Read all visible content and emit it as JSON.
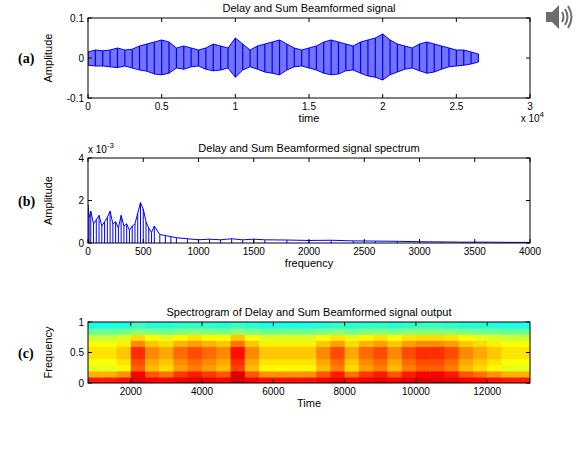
{
  "chart_data": [
    {
      "type": "area",
      "panel_label": "(a)",
      "title": "Delay and Sum Beamformed signal",
      "xlabel": "time",
      "ylabel": "Amplitude",
      "x_exponent": {
        "base": "x 10",
        "power": "4"
      },
      "x": [
        0,
        0.05,
        0.1,
        0.15,
        0.2,
        0.25,
        0.3,
        0.35,
        0.4,
        0.45,
        0.5,
        0.55,
        0.6,
        0.65,
        0.7,
        0.75,
        0.8,
        0.85,
        0.9,
        0.95,
        1,
        1.05,
        1.1,
        1.15,
        1.2,
        1.25,
        1.3,
        1.35,
        1.4,
        1.45,
        1.5,
        1.55,
        1.6,
        1.65,
        1.7,
        1.75,
        1.8,
        1.85,
        1.9,
        1.95,
        2,
        2.05,
        2.1,
        2.15,
        2.2,
        2.25,
        2.3,
        2.35,
        2.4,
        2.45,
        2.5,
        2.55,
        2.6,
        2.65
      ],
      "series": [
        {
          "color": "#0000ff",
          "values": [
            0.015,
            0.02,
            0.018,
            0.02,
            0.025,
            0.02,
            0.022,
            0.03,
            0.035,
            0.04,
            0.045,
            0.04,
            0.025,
            0.03,
            0.025,
            0.02,
            0.025,
            0.035,
            0.03,
            0.025,
            0.05,
            0.035,
            0.02,
            0.03,
            0.035,
            0.04,
            0.045,
            0.035,
            0.025,
            0.02,
            0.025,
            0.03,
            0.04,
            0.045,
            0.04,
            0.035,
            0.03,
            0.04,
            0.045,
            0.05,
            0.06,
            0.045,
            0.035,
            0.03,
            0.025,
            0.035,
            0.04,
            0.035,
            0.03,
            0.025,
            0.02,
            0.02,
            0.015,
            0.01
          ]
        },
        {
          "color": "#0000ff",
          "values": [
            -0.018,
            -0.02,
            -0.02,
            -0.022,
            -0.024,
            -0.02,
            -0.025,
            -0.03,
            -0.033,
            -0.04,
            -0.042,
            -0.038,
            -0.025,
            -0.028,
            -0.022,
            -0.02,
            -0.028,
            -0.032,
            -0.03,
            -0.025,
            -0.048,
            -0.03,
            -0.022,
            -0.028,
            -0.035,
            -0.038,
            -0.042,
            -0.03,
            -0.022,
            -0.02,
            -0.025,
            -0.03,
            -0.038,
            -0.042,
            -0.04,
            -0.032,
            -0.03,
            -0.038,
            -0.045,
            -0.048,
            -0.055,
            -0.042,
            -0.035,
            -0.028,
            -0.025,
            -0.032,
            -0.038,
            -0.035,
            -0.028,
            -0.022,
            -0.02,
            -0.018,
            -0.015,
            -0.01
          ]
        }
      ],
      "xlim": [
        0,
        3
      ],
      "xticks": [
        0,
        0.5,
        1,
        1.5,
        2,
        2.5,
        3
      ],
      "ylim": [
        -0.1,
        0.1
      ],
      "yticks": [
        -0.1,
        0,
        0.1
      ],
      "grid": false
    },
    {
      "type": "line",
      "panel_label": "(b)",
      "title": "Delay and Sum Beamformed signal spectrum",
      "xlabel": "frequency",
      "ylabel": "Amplitude",
      "y_exponent": {
        "base": "x 10",
        "power": "-3"
      },
      "x": [
        0,
        10,
        25,
        50,
        75,
        100,
        125,
        150,
        175,
        200,
        225,
        250,
        275,
        300,
        325,
        350,
        375,
        400,
        425,
        450,
        475,
        500,
        525,
        550,
        575,
        600,
        650,
        700,
        750,
        800,
        900,
        1000,
        1100,
        1200,
        1300,
        1400,
        1500,
        1600,
        1800,
        2000,
        2200,
        2400,
        2600,
        2800,
        3000,
        3200,
        3400,
        3600,
        3800,
        4000
      ],
      "values": [
        1.8,
        1.2,
        1.5,
        0.9,
        1.1,
        1.3,
        0.8,
        1.0,
        1.2,
        1.5,
        0.9,
        1.0,
        0.7,
        1.3,
        0.8,
        0.9,
        0.6,
        0.8,
        0.9,
        1.4,
        1.9,
        1.6,
        1.0,
        0.7,
        0.5,
        0.8,
        0.4,
        0.35,
        0.3,
        0.25,
        0.2,
        0.15,
        0.18,
        0.15,
        0.2,
        0.15,
        0.18,
        0.15,
        0.14,
        0.12,
        0.13,
        0.1,
        0.09,
        0.08,
        0.06,
        0.05,
        0.04,
        0.04,
        0.03,
        0.03
      ],
      "color": "#0000ff",
      "xlim": [
        0,
        4000
      ],
      "xticks": [
        0,
        500,
        1000,
        1500,
        2000,
        2500,
        3000,
        3500,
        4000
      ],
      "ylim": [
        0,
        4
      ],
      "yticks": [
        0,
        2,
        4
      ],
      "grid": false
    },
    {
      "type": "heatmap",
      "panel_label": "(c)",
      "title": "Spectrogram of Delay and Sum Beamformed signal output",
      "xlabel": "Time",
      "ylabel": "Frequency",
      "x_bins": [
        800,
        1200,
        1600,
        2000,
        2400,
        2800,
        3200,
        3600,
        4000,
        4400,
        4800,
        5200,
        5600,
        6000,
        6400,
        6800,
        7200,
        7600,
        8000,
        8400,
        8800,
        9200,
        9600,
        10000,
        10400,
        10800,
        11200,
        11600,
        12000,
        12400,
        12800,
        13200
      ],
      "y_bins": [
        0,
        0.1,
        0.2,
        0.3,
        0.4,
        0.5,
        0.6,
        0.7,
        0.8,
        0.9,
        1
      ],
      "z": [
        [
          0.85,
          0.85,
          0.86,
          0.91,
          0.88,
          0.87,
          0.89,
          0.9,
          0.89,
          0.88,
          0.92,
          0.88,
          0.86,
          0.86,
          0.86,
          0.86,
          0.88,
          0.9,
          0.87,
          0.89,
          0.9,
          0.88,
          0.9,
          0.91,
          0.91,
          0.9,
          0.88,
          0.87,
          0.86,
          0.85,
          0.85
        ],
        [
          0.7,
          0.7,
          0.73,
          0.88,
          0.79,
          0.76,
          0.82,
          0.85,
          0.82,
          0.79,
          0.91,
          0.79,
          0.73,
          0.73,
          0.73,
          0.73,
          0.79,
          0.85,
          0.76,
          0.82,
          0.85,
          0.79,
          0.85,
          0.88,
          0.88,
          0.85,
          0.79,
          0.76,
          0.73,
          0.7,
          0.7
        ],
        [
          0.6,
          0.6,
          0.63,
          0.78,
          0.69,
          0.66,
          0.72,
          0.75,
          0.72,
          0.69,
          0.81,
          0.69,
          0.63,
          0.63,
          0.63,
          0.63,
          0.69,
          0.75,
          0.66,
          0.72,
          0.75,
          0.69,
          0.75,
          0.78,
          0.78,
          0.75,
          0.69,
          0.66,
          0.63,
          0.6,
          0.6
        ],
        [
          0.62,
          0.62,
          0.65,
          0.8,
          0.71,
          0.68,
          0.74,
          0.77,
          0.74,
          0.71,
          0.83,
          0.71,
          0.65,
          0.65,
          0.65,
          0.65,
          0.71,
          0.77,
          0.68,
          0.74,
          0.77,
          0.71,
          0.77,
          0.8,
          0.8,
          0.77,
          0.71,
          0.68,
          0.65,
          0.62,
          0.62
        ],
        [
          0.65,
          0.65,
          0.68,
          0.83,
          0.74,
          0.71,
          0.77,
          0.8,
          0.77,
          0.74,
          0.86,
          0.74,
          0.68,
          0.68,
          0.68,
          0.68,
          0.74,
          0.8,
          0.71,
          0.77,
          0.8,
          0.74,
          0.8,
          0.83,
          0.83,
          0.8,
          0.74,
          0.71,
          0.68,
          0.65,
          0.65
        ],
        [
          0.65,
          0.65,
          0.68,
          0.83,
          0.74,
          0.71,
          0.77,
          0.8,
          0.77,
          0.74,
          0.86,
          0.74,
          0.68,
          0.68,
          0.68,
          0.68,
          0.74,
          0.8,
          0.71,
          0.77,
          0.8,
          0.74,
          0.8,
          0.83,
          0.83,
          0.8,
          0.74,
          0.71,
          0.68,
          0.65,
          0.65
        ],
        [
          0.62,
          0.62,
          0.64,
          0.74,
          0.68,
          0.66,
          0.7,
          0.72,
          0.7,
          0.68,
          0.76,
          0.68,
          0.64,
          0.64,
          0.64,
          0.64,
          0.68,
          0.72,
          0.66,
          0.7,
          0.72,
          0.68,
          0.72,
          0.74,
          0.74,
          0.72,
          0.68,
          0.66,
          0.64,
          0.62,
          0.62
        ],
        [
          0.57,
          0.57,
          0.59,
          0.66,
          0.62,
          0.6,
          0.63,
          0.65,
          0.63,
          0.62,
          0.68,
          0.62,
          0.59,
          0.59,
          0.59,
          0.59,
          0.62,
          0.65,
          0.6,
          0.63,
          0.65,
          0.62,
          0.65,
          0.66,
          0.66,
          0.65,
          0.62,
          0.6,
          0.59,
          0.57,
          0.57
        ],
        [
          0.48,
          0.48,
          0.49,
          0.51,
          0.5,
          0.49,
          0.5,
          0.51,
          0.5,
          0.5,
          0.52,
          0.5,
          0.49,
          0.49,
          0.49,
          0.49,
          0.5,
          0.51,
          0.49,
          0.5,
          0.51,
          0.5,
          0.51,
          0.51,
          0.51,
          0.51,
          0.5,
          0.49,
          0.49,
          0.48,
          0.48
        ],
        [
          0.4,
          0.4,
          0.4,
          0.43,
          0.41,
          0.41,
          0.42,
          0.42,
          0.42,
          0.41,
          0.43,
          0.41,
          0.4,
          0.4,
          0.4,
          0.4,
          0.41,
          0.42,
          0.41,
          0.42,
          0.42,
          0.41,
          0.42,
          0.43,
          0.43,
          0.42,
          0.41,
          0.41,
          0.4,
          0.4,
          0.4
        ]
      ],
      "xlim": [
        800,
        13200
      ],
      "xticks": [
        2000,
        4000,
        6000,
        8000,
        10000,
        12000
      ],
      "ylim": [
        0,
        1
      ],
      "yticks": [
        0,
        0.5,
        1
      ],
      "grid": false
    }
  ]
}
